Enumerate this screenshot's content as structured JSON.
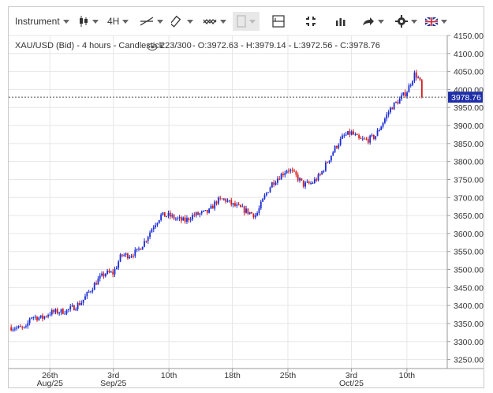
{
  "toolbar": {
    "instrument_label": "Instrument",
    "interval_label": "4H",
    "icons": [
      "candlestick-icon",
      "line-tool-icon",
      "ruler-icon",
      "indicator-icon",
      "compare-icon",
      "crosshair-icon",
      "fullscreen-icon",
      "volume-icon",
      "share-icon",
      "settings-icon",
      "language-flag-icon"
    ]
  },
  "colors": {
    "up": "#1a2bd6",
    "down": "#d61a1a",
    "price_label_bg": "#1f2fa8",
    "grid": "#e6e6e6"
  },
  "chart_data": {
    "type": "candlestick",
    "info": {
      "symbol": "XAU/USD (Bid) - 4 hours - Candlestick",
      "count": "223/300",
      "ohlc": "- O:3972.63 - H:3979.14 - L:3972.56 - C:3978.76"
    },
    "last_price": "3978.76",
    "y_ticks": [
      "4150.00",
      "4100.00",
      "4050.00",
      "4000.00",
      "3950.00",
      "3900.00",
      "3850.00",
      "3800.00",
      "3750.00",
      "3700.00",
      "3650.00",
      "3600.00",
      "3550.00",
      "3500.00",
      "3450.00",
      "3400.00",
      "3350.00",
      "3300.00",
      "3250.00"
    ],
    "ylim": [
      3225,
      4150
    ],
    "x_ticks": [
      {
        "label": "26th",
        "sub": "Aug/25",
        "day": 5
      },
      {
        "label": "3rd",
        "sub": "Sep/25",
        "day": 13
      },
      {
        "label": "10th",
        "sub": "",
        "day": 20
      },
      {
        "label": "18th",
        "sub": "",
        "day": 28
      },
      {
        "label": "25th",
        "sub": "",
        "day": 35
      },
      {
        "label": "3rd",
        "sub": "Oct/25",
        "day": 43
      },
      {
        "label": "10th",
        "sub": "",
        "day": 50
      }
    ],
    "xlim": [
      0,
      52
    ],
    "path": [
      [
        0,
        3340
      ],
      [
        2,
        3335
      ],
      [
        2.5,
        3370
      ],
      [
        4,
        3365
      ],
      [
        5,
        3380
      ],
      [
        7,
        3385
      ],
      [
        8,
        3395
      ],
      [
        9,
        3410
      ],
      [
        10,
        3440
      ],
      [
        11,
        3470
      ],
      [
        12,
        3490
      ],
      [
        13,
        3490
      ],
      [
        14,
        3540
      ],
      [
        15,
        3540
      ],
      [
        16,
        3550
      ],
      [
        17,
        3580
      ],
      [
        18,
        3620
      ],
      [
        19,
        3650
      ],
      [
        20,
        3650
      ],
      [
        21,
        3640
      ],
      [
        22,
        3635
      ],
      [
        23,
        3650
      ],
      [
        24,
        3655
      ],
      [
        25,
        3660
      ],
      [
        26,
        3690
      ],
      [
        27,
        3695
      ],
      [
        28,
        3680
      ],
      [
        29,
        3670
      ],
      [
        30,
        3660
      ],
      [
        31,
        3650
      ],
      [
        32,
        3700
      ],
      [
        33,
        3740
      ],
      [
        34,
        3760
      ],
      [
        35,
        3780
      ],
      [
        36,
        3760
      ],
      [
        37,
        3735
      ],
      [
        38,
        3740
      ],
      [
        39,
        3760
      ],
      [
        40,
        3800
      ],
      [
        41,
        3840
      ],
      [
        42,
        3870
      ],
      [
        43,
        3880
      ],
      [
        44,
        3860
      ],
      [
        45,
        3860
      ],
      [
        46,
        3870
      ],
      [
        47,
        3910
      ],
      [
        48,
        3950
      ],
      [
        49,
        3970
      ],
      [
        50,
        3995
      ],
      [
        51,
        4045
      ],
      [
        51.6,
        4025
      ],
      [
        52,
        3978.76
      ]
    ]
  }
}
